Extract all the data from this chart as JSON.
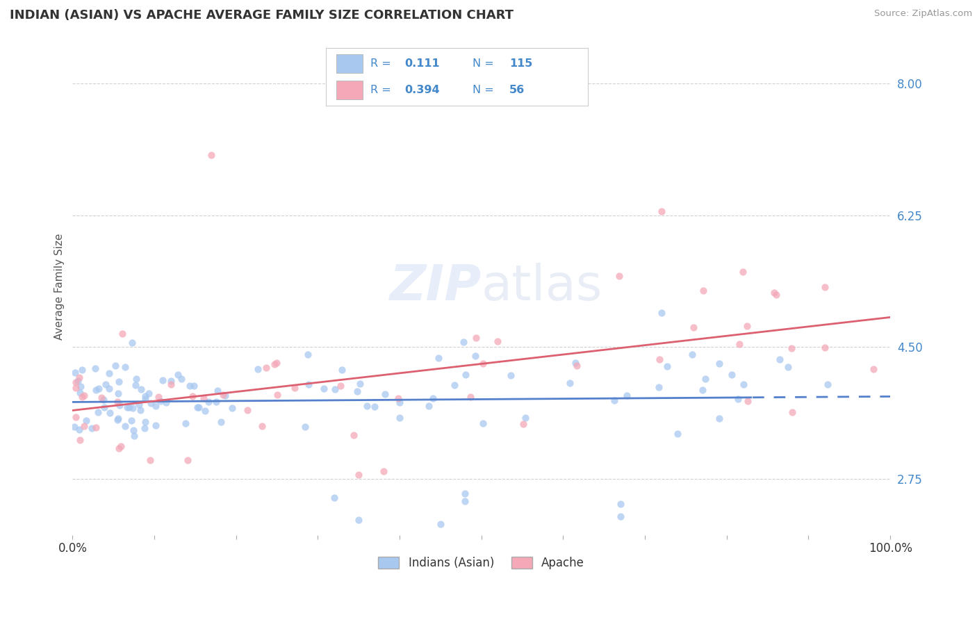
{
  "title": "INDIAN (ASIAN) VS APACHE AVERAGE FAMILY SIZE CORRELATION CHART",
  "source": "Source: ZipAtlas.com",
  "ylabel": "Average Family Size",
  "xlim": [
    0,
    100
  ],
  "ylim": [
    2.0,
    8.6
  ],
  "yticks": [
    2.75,
    4.5,
    6.25,
    8.0
  ],
  "background_color": "#ffffff",
  "grid_color": "#cccccc",
  "indian_color": "#a8c8f0",
  "apache_color": "#f4a8b8",
  "indian_line_color": "#5580cc",
  "apache_line_color": "#dd6070",
  "R_indian": 0.111,
  "N_indian": 115,
  "R_apache": 0.394,
  "N_apache": 56,
  "watermark_color": "#ccddeebb",
  "tick_color": "#4488cc",
  "title_color": "#333333",
  "source_color": "#999999",
  "ylabel_color": "#555555",
  "legend_border_color": "#cccccc",
  "indian_line_dash_start": 83
}
